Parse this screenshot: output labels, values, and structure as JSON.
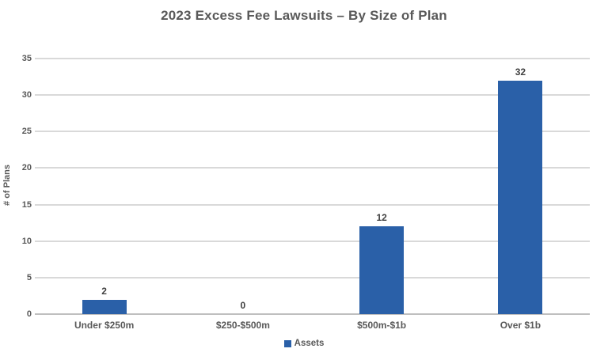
{
  "chart_data": {
    "type": "bar",
    "title": "2023 Excess Fee Lawsuits – By Size of Plan",
    "categories": [
      "Under $250m",
      "$250-$500m",
      "$500m-$1b",
      "Over $1b"
    ],
    "series": [
      {
        "name": "Assets",
        "values": [
          2,
          0,
          12,
          32
        ]
      }
    ],
    "data_labels": [
      "2",
      "0",
      "12",
      "32"
    ],
    "xlabel": "",
    "ylabel": "# of Plans",
    "ylim": [
      0,
      35
    ],
    "yticks": [
      0,
      5,
      10,
      15,
      20,
      25,
      30,
      35
    ],
    "grid": true,
    "legend_position": "bottom-center"
  },
  "colors": {
    "bar": "#2A60A8",
    "title_text": "#595959",
    "axis_text": "#595959",
    "data_label_text": "#404040",
    "gridline": "#D9D9D9",
    "zero_line": "#BFBFBF",
    "background": "#FFFFFF"
  }
}
